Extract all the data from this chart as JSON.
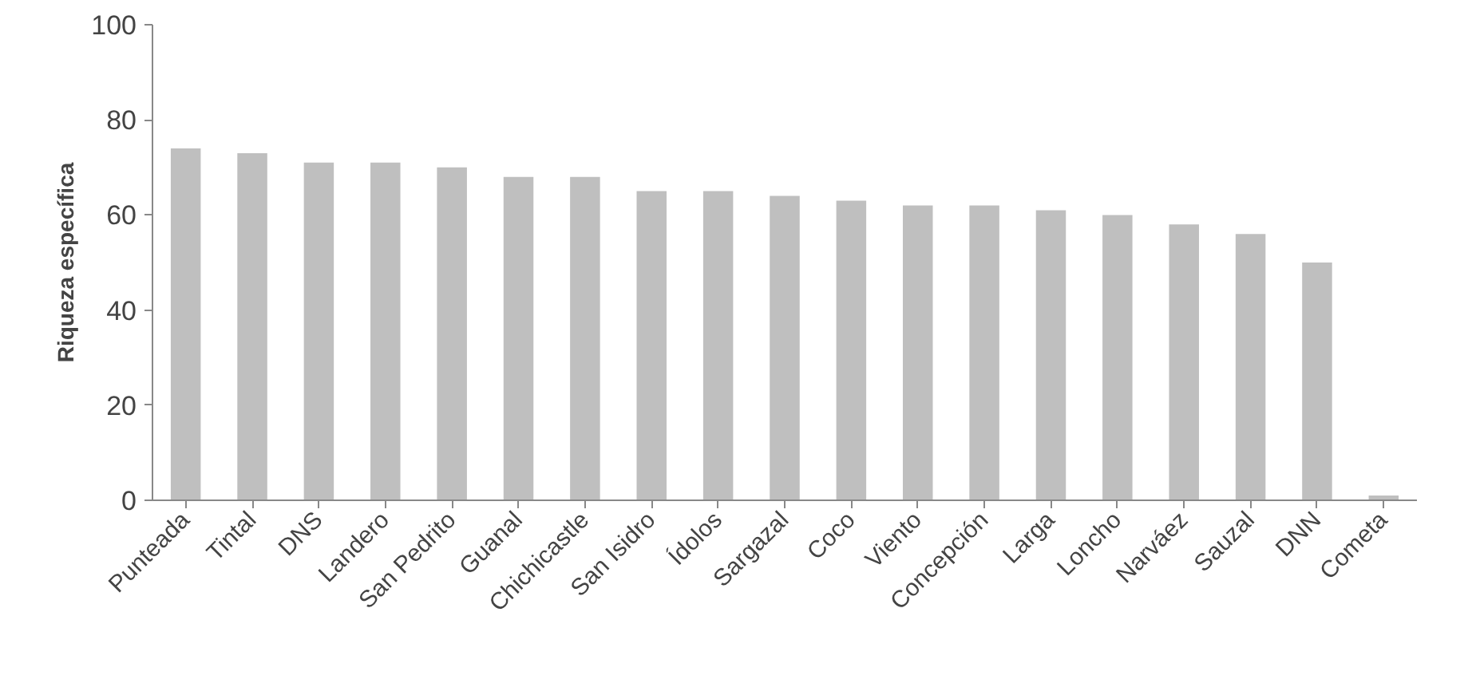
{
  "chart_data": {
    "type": "bar",
    "ylabel": "Riqueza específica",
    "categories": [
      "Punteada",
      "Tintal",
      "DNS",
      "Landero",
      "San Pedrito",
      "Guanal",
      "Chichicastle",
      "San Isidro",
      "Ídolos",
      "Sargazal",
      "Coco",
      "Viento",
      "Concepción",
      "Larga",
      "Loncho",
      "Narváez",
      "Sauzal",
      "DNN",
      "Cometa"
    ],
    "values": [
      74,
      73,
      71,
      71,
      70,
      68,
      68,
      65,
      65,
      64,
      63,
      62,
      62,
      61,
      60,
      58,
      56,
      50,
      1
    ],
    "color": "#bfbfbf",
    "ylim": [
      0,
      100
    ],
    "yticks": [
      0,
      20,
      40,
      60,
      80,
      100
    ],
    "grid": false
  }
}
